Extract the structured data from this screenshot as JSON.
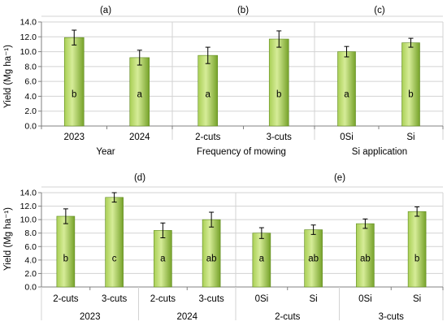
{
  "colors": {
    "bar_fill_light": "#d4ea93",
    "bar_fill_dark": "#7aa42c",
    "bar_stroke": "#5f8a1e",
    "grid": "#d3d3d3",
    "axis": "#808080",
    "error_bar": "#000000"
  },
  "chart_data": [
    {
      "type": "bar",
      "panel_label": "(a)",
      "xlabel": "Year",
      "ylabel": "Yield (Mg ha⁻¹)",
      "ylim": [
        0,
        14
      ],
      "ytick_step": 2,
      "ytick_labels": [
        "0.0",
        "2.0",
        "4.0",
        "6.0",
        "8.0",
        "10.0",
        "12.0",
        "14.0"
      ],
      "grid": true,
      "categories": [
        "2023",
        "2024"
      ],
      "values": [
        11.9,
        9.2
      ],
      "errors": [
        1.0,
        1.0
      ],
      "letters": [
        "b",
        "a"
      ]
    },
    {
      "type": "bar",
      "panel_label": "(b)",
      "xlabel": "Frequency of mowing",
      "ylim": [
        0,
        14
      ],
      "grid": true,
      "categories": [
        "2-cuts",
        "3-cuts"
      ],
      "values": [
        9.5,
        11.7
      ],
      "errors": [
        1.1,
        1.1
      ],
      "letters": [
        "a",
        "b"
      ]
    },
    {
      "type": "bar",
      "panel_label": "(c)",
      "xlabel": "Si application",
      "ylim": [
        0,
        14
      ],
      "grid": true,
      "categories": [
        "0Si",
        "Si"
      ],
      "values": [
        10.0,
        11.2
      ],
      "errors": [
        0.7,
        0.6
      ],
      "letters": [
        "a",
        "b"
      ]
    },
    {
      "type": "bar",
      "panel_label": "(d)",
      "ylabel": "Yield (Mg ha⁻¹)",
      "ylim": [
        0,
        14
      ],
      "ytick_step": 2,
      "ytick_labels": [
        "0.0",
        "2.0",
        "4.0",
        "6.0",
        "8.0",
        "10.0",
        "12.0",
        "14.0"
      ],
      "grid": true,
      "categories": [
        "2-cuts",
        "3-cuts",
        "2-cuts",
        "3-cuts"
      ],
      "groups": [
        "2023",
        "2024"
      ],
      "values": [
        10.5,
        13.3,
        8.4,
        10.0
      ],
      "errors": [
        1.1,
        0.7,
        1.1,
        1.1
      ],
      "letters": [
        "b",
        "c",
        "a",
        "ab"
      ]
    },
    {
      "type": "bar",
      "panel_label": "(e)",
      "ylim": [
        0,
        14
      ],
      "grid": true,
      "categories": [
        "0Si",
        "Si",
        "0Si",
        "Si"
      ],
      "groups": [
        "2-cuts",
        "3-cuts"
      ],
      "values": [
        8.0,
        8.5,
        9.4,
        11.2
      ],
      "errors": [
        0.8,
        0.7,
        0.7,
        0.7
      ],
      "letters": [
        "a",
        "ab",
        "ab",
        "b"
      ]
    }
  ]
}
